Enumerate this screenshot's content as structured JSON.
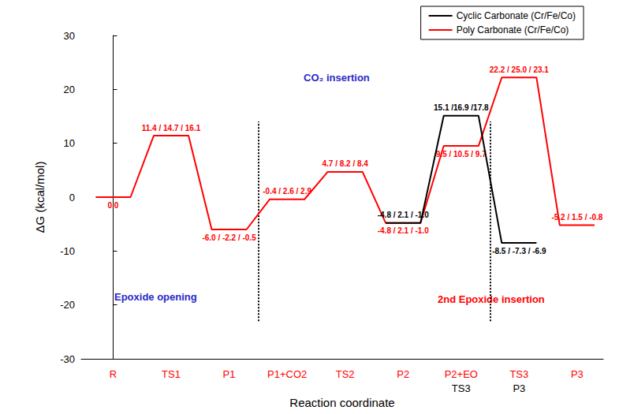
{
  "chart_data": {
    "type": "energy_profile",
    "x_label": "Reaction coordinate",
    "y_label": "ΔG (kcal/mol)",
    "categories": [
      "R",
      "TS1",
      "P1",
      "P1+CO2",
      "TS2",
      "P2",
      "P2+EO",
      "TS3",
      "P3"
    ],
    "series": [
      {
        "name": "Cyclic Carbonate (Cr/Fe/Co)",
        "color": "#000000",
        "categories": [
          null,
          null,
          null,
          null,
          null,
          null,
          "TS3",
          "P3",
          null
        ],
        "values": [
          null,
          null,
          null,
          null,
          null,
          -4.8,
          15.1,
          -8.5,
          null
        ],
        "value_labels": [
          null,
          null,
          null,
          null,
          null,
          "-4.8 / 2.1 / -1.0",
          "15.1 /16.9 /17.8",
          "-8.5 / -7.3 / -6.9",
          null
        ]
      },
      {
        "name": "Poly Carbonate (Cr/Fe/Co)",
        "color": "#ff0000",
        "values": [
          0,
          11.4,
          -6.0,
          -0.4,
          4.7,
          -4.8,
          9.5,
          22.2,
          -5.2
        ],
        "value_labels": [
          "0.0",
          "11.4 / 14.7 / 16.1",
          "-6.0 / -2.2 / -0.5",
          "-0.4 / 2.6 / 2.9",
          "4.7 / 8.2 / 8.4",
          "-4.8 / 2.1 / -1.0",
          "9.5 / 10.5 / 9.7",
          "22.2 / 25.0 / 23.1",
          "-5.2 / 1.5 / -0.8"
        ]
      }
    ],
    "ylim": [
      -30,
      30
    ],
    "yticks": [
      -30,
      -20,
      -10,
      0,
      10,
      20,
      30
    ],
    "grid": false,
    "legend": "upper right",
    "data_labels": true,
    "annotations": [
      {
        "text": "Epoxide opening",
        "color": "#2a2ac8"
      },
      {
        "text": "CO₂ insertion",
        "color": "#2a2ac8"
      },
      {
        "text": "2nd Epoxide insertion",
        "color": "#ff0000"
      }
    ]
  }
}
